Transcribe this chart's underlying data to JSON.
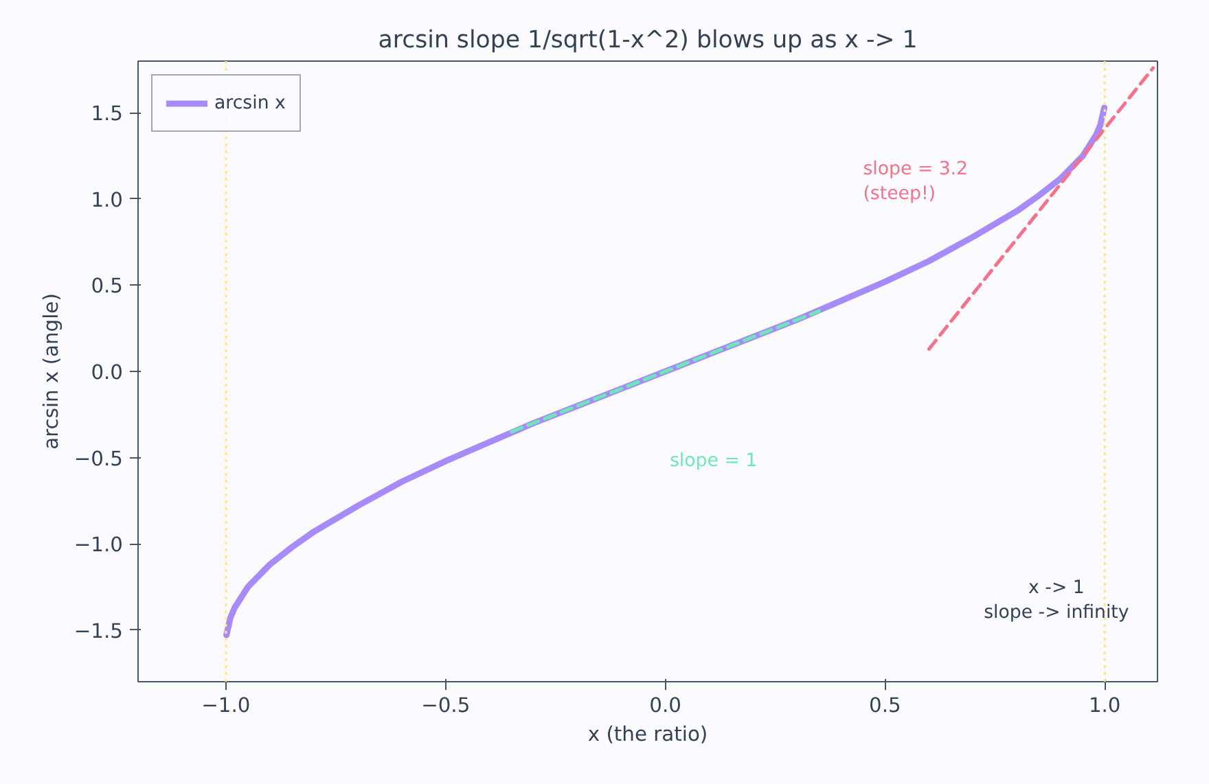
{
  "chart_data": {
    "type": "line",
    "title": "arcsin slope 1/sqrt(1-x^2) blows up as x -> 1",
    "xlabel": "x (the ratio)",
    "ylabel": "arcsin x (angle)",
    "xlim": [
      -1.2,
      1.12
    ],
    "ylim": [
      -1.8,
      1.8
    ],
    "xticks": [
      {
        "value": -1.0,
        "label": "−1.0"
      },
      {
        "value": -0.5,
        "label": "−0.5"
      },
      {
        "value": 0.0,
        "label": "0.0"
      },
      {
        "value": 0.5,
        "label": "0.5"
      },
      {
        "value": 1.0,
        "label": "1.0"
      }
    ],
    "yticks": [
      {
        "value": -1.5,
        "label": "−1.5"
      },
      {
        "value": -1.0,
        "label": "−1.0"
      },
      {
        "value": -0.5,
        "label": "−0.5"
      },
      {
        "value": 0.0,
        "label": "0.0"
      },
      {
        "value": 0.5,
        "label": "0.5"
      },
      {
        "value": 1.0,
        "label": "1.0"
      },
      {
        "value": 1.5,
        "label": "1.5"
      }
    ],
    "grid": false,
    "legend": "top left",
    "series": [
      {
        "name": "arcsin x",
        "color": "#a78bfa",
        "line_style": "solid",
        "x": [
          -0.999,
          -0.99,
          -0.98,
          -0.95,
          -0.9,
          -0.85,
          -0.8,
          -0.7,
          -0.6,
          -0.5,
          -0.4,
          -0.3,
          -0.2,
          -0.1,
          0.0,
          0.1,
          0.2,
          0.3,
          0.4,
          0.5,
          0.6,
          0.7,
          0.8,
          0.85,
          0.9,
          0.95,
          0.98,
          0.99,
          0.999
        ],
        "values": [
          -1.53,
          -1.43,
          -1.37,
          -1.25,
          -1.12,
          -1.02,
          -0.93,
          -0.78,
          -0.64,
          -0.52,
          -0.41,
          -0.3,
          -0.2,
          -0.1,
          0.0,
          0.1,
          0.2,
          0.3,
          0.41,
          0.52,
          0.64,
          0.78,
          0.93,
          1.02,
          1.12,
          1.25,
          1.37,
          1.43,
          1.53
        ]
      },
      {
        "color": "#6ee7b7",
        "line_style": "dashed",
        "x": [
          -0.35,
          0.35
        ],
        "values": [
          -0.35,
          0.35
        ]
      },
      {
        "color": "#f4738a",
        "line_style": "dashed",
        "x": [
          0.6,
          1.11
        ],
        "values": [
          0.13,
          1.76
        ]
      }
    ],
    "ref_lines": [
      {
        "axis": "x",
        "value": -1.0,
        "color": "#fde68a",
        "line_style": "dotted"
      },
      {
        "axis": "x",
        "value": 1.0,
        "color": "#fde68a",
        "line_style": "dotted"
      }
    ],
    "annotations": [
      "slope = 3.2\n(steep!)",
      "slope = 1",
      "x -> 1\nslope -> infinity"
    ]
  }
}
